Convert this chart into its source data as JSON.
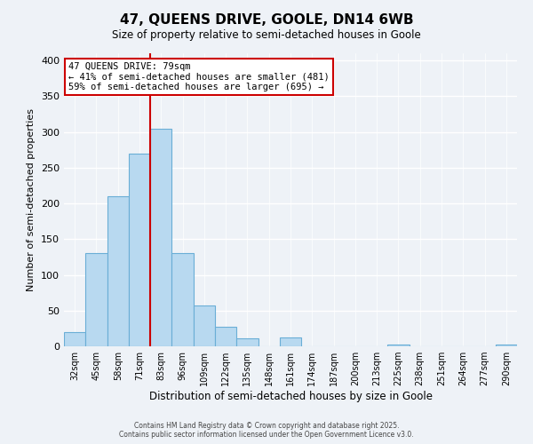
{
  "title": "47, QUEENS DRIVE, GOOLE, DN14 6WB",
  "subtitle": "Size of property relative to semi-detached houses in Goole",
  "xlabel": "Distribution of semi-detached houses by size in Goole",
  "ylabel": "Number of semi-detached properties",
  "categories": [
    "32sqm",
    "45sqm",
    "58sqm",
    "71sqm",
    "83sqm",
    "96sqm",
    "109sqm",
    "122sqm",
    "135sqm",
    "148sqm",
    "161sqm",
    "174sqm",
    "187sqm",
    "200sqm",
    "213sqm",
    "225sqm",
    "238sqm",
    "251sqm",
    "264sqm",
    "277sqm",
    "290sqm"
  ],
  "bar_values": [
    20,
    130,
    210,
    270,
    305,
    130,
    57,
    27,
    11,
    0,
    13,
    0,
    0,
    0,
    0,
    3,
    0,
    0,
    0,
    0,
    2
  ],
  "bar_color": "#b8d9f0",
  "bar_edge_color": "#6aaed6",
  "vline_color": "#cc0000",
  "annotation_title": "47 QUEENS DRIVE: 79sqm",
  "annotation_line1": "← 41% of semi-detached houses are smaller (481)",
  "annotation_line2": "59% of semi-detached houses are larger (695) →",
  "annotation_box_color": "#ffffff",
  "annotation_box_edge": "#cc0000",
  "ylim": [
    0,
    410
  ],
  "yticks": [
    0,
    50,
    100,
    150,
    200,
    250,
    300,
    350,
    400
  ],
  "footer1": "Contains HM Land Registry data © Crown copyright and database right 2025.",
  "footer2": "Contains public sector information licensed under the Open Government Licence v3.0.",
  "background_color": "#eef2f7"
}
